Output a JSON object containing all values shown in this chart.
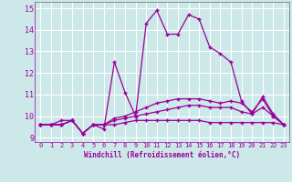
{
  "x": [
    0,
    1,
    2,
    3,
    4,
    5,
    6,
    7,
    8,
    9,
    10,
    11,
    12,
    13,
    14,
    15,
    16,
    17,
    18,
    19,
    20,
    21,
    22,
    23
  ],
  "line1": [
    9.6,
    9.6,
    9.6,
    9.8,
    9.2,
    9.6,
    9.6,
    9.6,
    9.7,
    9.8,
    9.8,
    9.8,
    9.8,
    9.8,
    9.8,
    9.8,
    9.7,
    9.7,
    9.7,
    9.7,
    9.7,
    9.7,
    9.7,
    9.6
  ],
  "line2": [
    9.6,
    9.6,
    9.6,
    9.8,
    9.2,
    9.6,
    9.6,
    9.8,
    9.9,
    10.0,
    10.1,
    10.2,
    10.3,
    10.4,
    10.5,
    10.5,
    10.4,
    10.4,
    10.4,
    10.2,
    10.1,
    10.4,
    10.0,
    9.6
  ],
  "line3": [
    9.6,
    9.6,
    9.6,
    9.8,
    9.2,
    9.6,
    9.6,
    9.9,
    10.0,
    10.2,
    10.4,
    10.6,
    10.7,
    10.8,
    10.8,
    10.8,
    10.7,
    10.6,
    10.7,
    10.6,
    10.2,
    10.8,
    10.0,
    9.6
  ],
  "line4": [
    9.6,
    9.6,
    9.8,
    9.8,
    9.2,
    9.6,
    9.4,
    12.5,
    11.1,
    10.0,
    14.3,
    14.9,
    13.8,
    13.8,
    14.7,
    14.5,
    13.2,
    12.9,
    12.5,
    10.7,
    10.1,
    10.9,
    10.1,
    9.6
  ],
  "line_color": "#990099",
  "bg_color": "#cce8e8",
  "xlabel": "Windchill (Refroidissement éolien,°C)",
  "ylabel_ticks": [
    9,
    10,
    11,
    12,
    13,
    14,
    15
  ],
  "xlim": [
    -0.5,
    23.5
  ],
  "ylim": [
    8.8,
    15.3
  ],
  "grid_color": "#aacccc",
  "tick_color": "#990099",
  "xlabel_color": "#990099"
}
